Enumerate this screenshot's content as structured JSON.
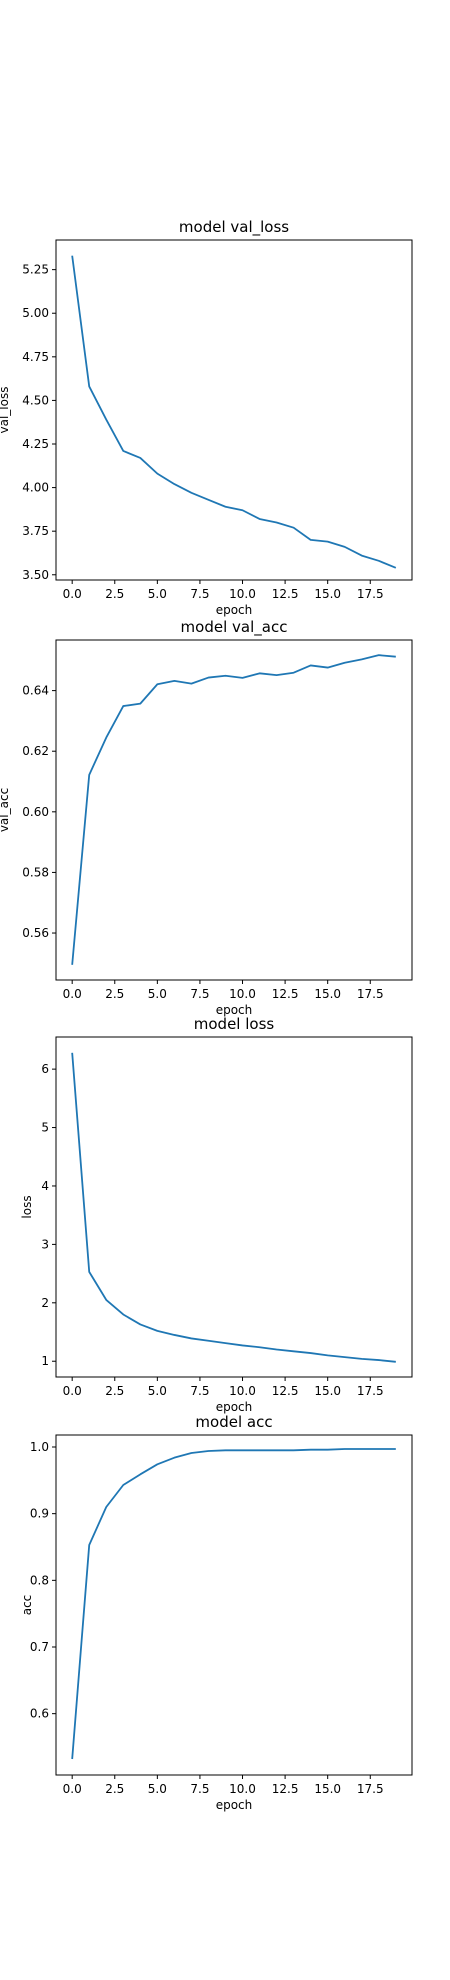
{
  "colors": {
    "line": "#1f77b4"
  },
  "chart_data": [
    {
      "type": "line",
      "title": "model val_loss",
      "xlabel": "epoch",
      "ylabel": "val_loss",
      "grid": false,
      "xlim": [
        -0.95,
        19.95
      ],
      "ylim": [
        3.47,
        5.42
      ],
      "xticks": [
        0.0,
        2.5,
        5.0,
        7.5,
        10.0,
        12.5,
        15.0,
        17.5
      ],
      "xtick_labels": [
        "0.0",
        "2.5",
        "5.0",
        "7.5",
        "10.0",
        "12.5",
        "15.0",
        "17.5"
      ],
      "yticks": [
        3.5,
        3.75,
        4.0,
        4.25,
        4.5,
        4.75,
        5.0,
        5.25
      ],
      "ytick_labels": [
        "3.50",
        "3.75",
        "4.00",
        "4.25",
        "4.50",
        "4.75",
        "5.00",
        "5.25"
      ],
      "x": [
        0,
        1,
        2,
        3,
        4,
        5,
        6,
        7,
        8,
        9,
        10,
        11,
        12,
        13,
        14,
        15,
        16,
        17,
        18,
        19
      ],
      "series": [
        {
          "values": [
            5.33,
            4.58,
            4.39,
            4.21,
            4.17,
            4.08,
            4.02,
            3.97,
            3.93,
            3.89,
            3.87,
            3.82,
            3.8,
            3.77,
            3.7,
            3.69,
            3.66,
            3.61,
            3.58,
            3.54
          ]
        }
      ]
    },
    {
      "type": "line",
      "title": "model val_acc",
      "xlabel": "epoch",
      "ylabel": "val_acc",
      "grid": false,
      "xlim": [
        -0.95,
        19.95
      ],
      "ylim": [
        0.5445,
        0.6567
      ],
      "xticks": [
        0.0,
        2.5,
        5.0,
        7.5,
        10.0,
        12.5,
        15.0,
        17.5
      ],
      "xtick_labels": [
        "0.0",
        "2.5",
        "5.0",
        "7.5",
        "10.0",
        "12.5",
        "15.0",
        "17.5"
      ],
      "yticks": [
        0.56,
        0.58,
        0.6,
        0.62,
        0.64
      ],
      "ytick_labels": [
        "0.56",
        "0.58",
        "0.60",
        "0.62",
        "0.64"
      ],
      "x": [
        0,
        1,
        2,
        3,
        4,
        5,
        6,
        7,
        8,
        9,
        10,
        11,
        12,
        13,
        14,
        15,
        16,
        17,
        18,
        19
      ],
      "series": [
        {
          "values": [
            0.5495,
            0.6122,
            0.6245,
            0.6349,
            0.6357,
            0.6421,
            0.6432,
            0.6423,
            0.6443,
            0.6449,
            0.6442,
            0.6457,
            0.6451,
            0.6459,
            0.6483,
            0.6476,
            0.6492,
            0.6503,
            0.6517,
            0.6512
          ]
        }
      ]
    },
    {
      "type": "line",
      "title": "model loss",
      "xlabel": "epoch",
      "ylabel": "loss",
      "grid": false,
      "xlim": [
        -0.95,
        19.95
      ],
      "ylim": [
        0.73,
        6.55
      ],
      "xticks": [
        0.0,
        2.5,
        5.0,
        7.5,
        10.0,
        12.5,
        15.0,
        17.5
      ],
      "xtick_labels": [
        "0.0",
        "2.5",
        "5.0",
        "7.5",
        "10.0",
        "12.5",
        "15.0",
        "17.5"
      ],
      "yticks": [
        1,
        2,
        3,
        4,
        5,
        6
      ],
      "ytick_labels": [
        "1",
        "2",
        "3",
        "4",
        "5",
        "6"
      ],
      "x": [
        0,
        1,
        2,
        3,
        4,
        5,
        6,
        7,
        8,
        9,
        10,
        11,
        12,
        13,
        14,
        15,
        16,
        17,
        18,
        19
      ],
      "series": [
        {
          "values": [
            6.28,
            2.53,
            2.05,
            1.8,
            1.63,
            1.52,
            1.45,
            1.39,
            1.35,
            1.31,
            1.27,
            1.24,
            1.2,
            1.17,
            1.14,
            1.1,
            1.07,
            1.04,
            1.02,
            0.99
          ]
        }
      ]
    },
    {
      "type": "line",
      "title": "model acc",
      "xlabel": "epoch",
      "ylabel": "acc",
      "grid": false,
      "xlim": [
        -0.95,
        19.95
      ],
      "ylim": [
        0.508,
        1.018
      ],
      "xticks": [
        0.0,
        2.5,
        5.0,
        7.5,
        10.0,
        12.5,
        15.0,
        17.5
      ],
      "xtick_labels": [
        "0.0",
        "2.5",
        "5.0",
        "7.5",
        "10.0",
        "12.5",
        "15.0",
        "17.5"
      ],
      "yticks": [
        0.6,
        0.7,
        0.8,
        0.9,
        1.0
      ],
      "ytick_labels": [
        "0.6",
        "0.7",
        "0.8",
        "0.9",
        "1.0"
      ],
      "x": [
        0,
        1,
        2,
        3,
        4,
        5,
        6,
        7,
        8,
        9,
        10,
        11,
        12,
        13,
        14,
        15,
        16,
        17,
        18,
        19
      ],
      "series": [
        {
          "values": [
            0.532,
            0.853,
            0.91,
            0.943,
            0.959,
            0.974,
            0.984,
            0.991,
            0.994,
            0.995,
            0.995,
            0.995,
            0.995,
            0.995,
            0.996,
            0.996,
            0.997,
            0.997,
            0.997,
            0.997
          ]
        }
      ]
    }
  ]
}
